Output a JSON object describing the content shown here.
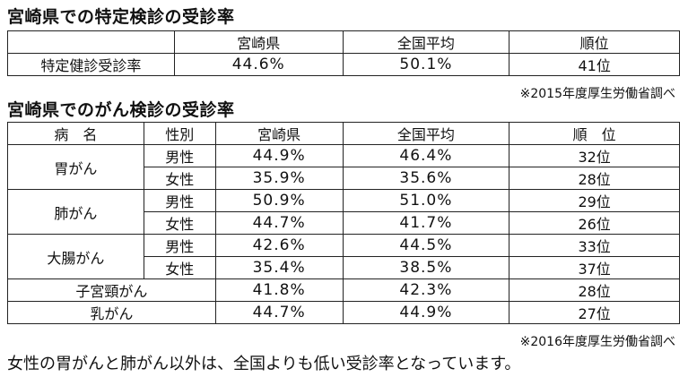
{
  "section1": {
    "title": "宮崎県での特定検診の受診率",
    "headers": [
      "",
      "宮崎県",
      "全国平均",
      "順位"
    ],
    "row": {
      "label": "特定健診受診率",
      "miyazaki": "44.6%",
      "national": "50.1%",
      "rank": "41位"
    },
    "source": "※2015年度厚生労働省調べ"
  },
  "section2": {
    "title": "宮崎県でのがん検診の受診率",
    "headers": [
      "病　名",
      "性別",
      "宮崎県",
      "全国平均",
      "順　位"
    ],
    "rows": [
      {
        "disease": "胃がん",
        "sex": "男性",
        "miyazaki": "44.9%",
        "national": "46.4%",
        "rank": "32位"
      },
      {
        "disease": "",
        "sex": "女性",
        "miyazaki": "35.9%",
        "national": "35.6%",
        "rank": "28位"
      },
      {
        "disease": "肺がん",
        "sex": "男性",
        "miyazaki": "50.9%",
        "national": "51.0%",
        "rank": "29位"
      },
      {
        "disease": "",
        "sex": "女性",
        "miyazaki": "44.7%",
        "national": "41.7%",
        "rank": "26位"
      },
      {
        "disease": "大腸がん",
        "sex": "男性",
        "miyazaki": "42.6%",
        "national": "44.5%",
        "rank": "33位"
      },
      {
        "disease": "",
        "sex": "女性",
        "miyazaki": "35.4%",
        "national": "38.5%",
        "rank": "37位"
      },
      {
        "disease_pre": "子宮",
        "disease_ruby_base": "頸",
        "disease_ruby_text": "けい",
        "disease_post": "がん",
        "miyazaki": "41.8%",
        "national": "42.3%",
        "rank": "28位"
      },
      {
        "disease": "乳がん",
        "miyazaki": "44.7%",
        "national": "44.9%",
        "rank": "27位"
      }
    ],
    "source": "※2016年度厚生労働省調べ"
  },
  "note": "女性の胃がんと肺がん以外は、全国よりも低い受診率となっています。"
}
